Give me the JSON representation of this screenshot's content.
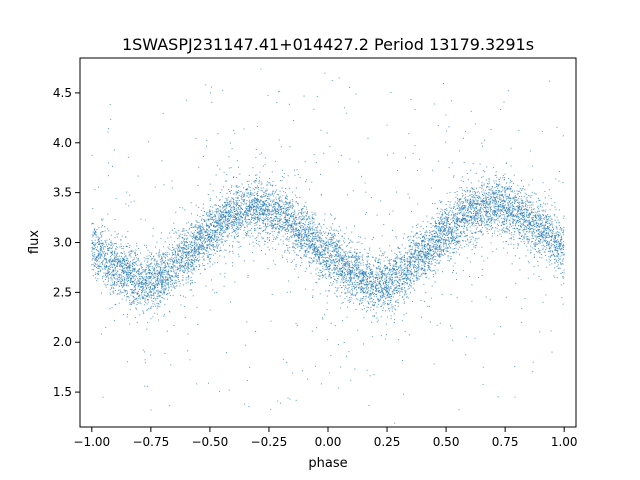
{
  "chart_data": {
    "type": "scatter",
    "title": "1SWASPJ231147.41+014427.2 Period 13179.3291s",
    "xlabel": "phase",
    "ylabel": "flux",
    "xlim": [
      -1.05,
      1.05
    ],
    "ylim": [
      1.15,
      4.85
    ],
    "xticks": [
      -1.0,
      -0.75,
      -0.5,
      -0.25,
      0.0,
      0.25,
      0.5,
      0.75,
      1.0
    ],
    "xtick_labels": [
      "−1.00",
      "−0.75",
      "−0.50",
      "−0.25",
      "0.00",
      "0.25",
      "0.50",
      "0.75",
      "1.00"
    ],
    "yticks": [
      1.5,
      2.0,
      2.5,
      3.0,
      3.5,
      4.0,
      4.5
    ],
    "ytick_labels": [
      "1.5",
      "2.0",
      "2.5",
      "3.0",
      "3.5",
      "4.0",
      "4.5"
    ],
    "grid": false,
    "legend": "none",
    "marker_color": "#1f77b4",
    "trend": {
      "phase": [
        -1.0,
        -0.9,
        -0.8,
        -0.75,
        -0.7,
        -0.6,
        -0.5,
        -0.4,
        -0.3,
        -0.25,
        -0.2,
        -0.1,
        0.0,
        0.1,
        0.2,
        0.25,
        0.3,
        0.4,
        0.5,
        0.6,
        0.7,
        0.75,
        0.8,
        0.9,
        1.0
      ],
      "flux": [
        2.95,
        2.75,
        2.62,
        2.6,
        2.66,
        2.88,
        3.1,
        3.28,
        3.36,
        3.33,
        3.28,
        3.08,
        2.88,
        2.7,
        2.58,
        2.58,
        2.66,
        2.88,
        3.1,
        3.28,
        3.36,
        3.35,
        3.3,
        3.13,
        2.95
      ]
    },
    "scatter_sd": 0.14,
    "point_count": 9000,
    "outlier_count": 700,
    "outlier_range": [
      1.3,
      4.7
    ]
  }
}
